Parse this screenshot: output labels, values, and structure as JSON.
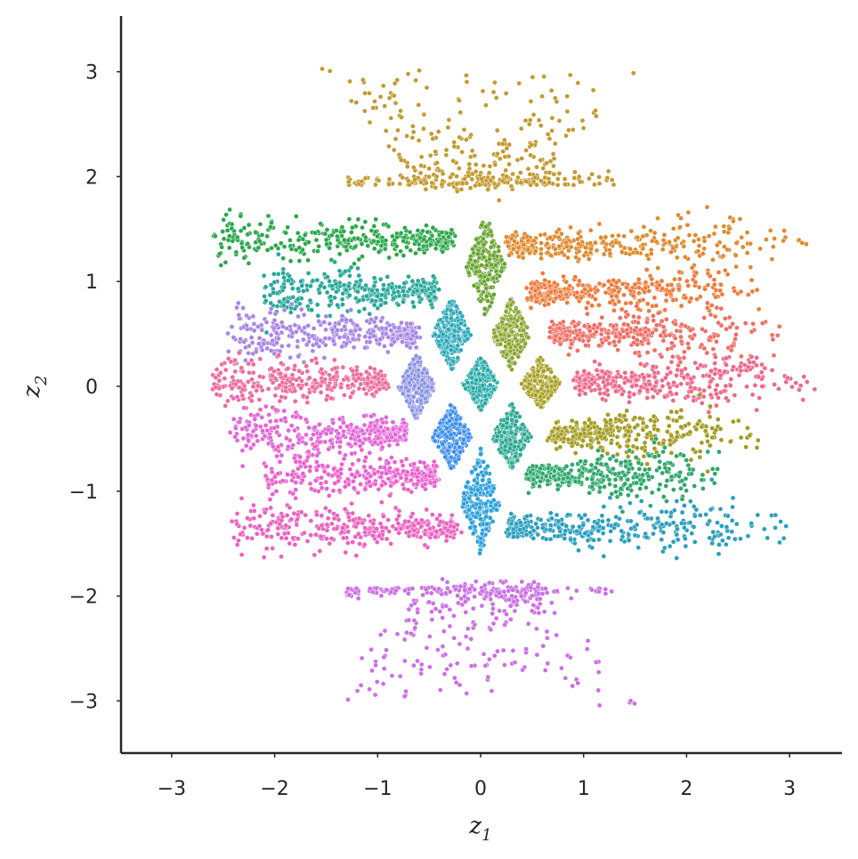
{
  "chart_data": {
    "type": "scatter",
    "title": "",
    "xlabel": "z",
    "xlabel_sub": "1",
    "ylabel": "z",
    "ylabel_sub": "2",
    "xlim": [
      -3.5,
      3.5
    ],
    "ylim": [
      -3.5,
      3.5
    ],
    "xticks": [
      -3,
      -2,
      -1,
      0,
      1,
      2,
      3
    ],
    "yticks": [
      -3,
      -2,
      -1,
      0,
      1,
      2,
      3
    ],
    "xtick_labels": [
      "−3",
      "−2",
      "−1",
      "0",
      "1",
      "2",
      "3"
    ],
    "ytick_labels": [
      "−3",
      "−2",
      "−1",
      "0",
      "1",
      "2",
      "3"
    ],
    "grid": false,
    "legend": "none",
    "points_per_cluster_shown_approx": "dense clusters of small dots",
    "series": [
      {
        "color": "#c49a2e",
        "center": [
          0.0,
          2.2
        ],
        "shape": "fan",
        "dir": 1
      },
      {
        "color": "#cc6fe5",
        "center": [
          0.0,
          -2.2
        ],
        "shape": "fan",
        "dir": -1
      },
      {
        "color": "#2aa84a",
        "center": [
          -1.4,
          1.4
        ],
        "shape": "band",
        "xrange": [
          -2.6,
          -0.3
        ]
      },
      {
        "color": "#df8a2c",
        "center": [
          1.4,
          1.35
        ],
        "shape": "band",
        "xrange": [
          0.3,
          2.6
        ]
      },
      {
        "color": "#26a89a",
        "center": [
          -1.3,
          0.9
        ],
        "shape": "band",
        "xrange": [
          -2.1,
          -0.45
        ]
      },
      {
        "color": "#f07a3a",
        "center": [
          1.3,
          0.9
        ],
        "shape": "band",
        "xrange": [
          0.5,
          2.3
        ]
      },
      {
        "color": "#a786e8",
        "center": [
          -1.4,
          0.5
        ],
        "shape": "band",
        "xrange": [
          -2.4,
          -0.65
        ]
      },
      {
        "color": "#f26d63",
        "center": [
          1.4,
          0.5
        ],
        "shape": "band",
        "xrange": [
          0.7,
          2.5
        ]
      },
      {
        "color": "#f06a9a",
        "center": [
          -1.5,
          0.05
        ],
        "shape": "band",
        "xrange": [
          -2.6,
          -0.95
        ]
      },
      {
        "color": "#f0678a",
        "center": [
          1.6,
          0.05
        ],
        "shape": "band",
        "xrange": [
          0.95,
          2.8
        ]
      },
      {
        "color": "#e464d8",
        "center": [
          -1.4,
          -0.45
        ],
        "shape": "band",
        "xrange": [
          -2.4,
          -0.75
        ]
      },
      {
        "color": "#a39c20",
        "center": [
          1.4,
          -0.45
        ],
        "shape": "band",
        "xrange": [
          0.7,
          2.3
        ]
      },
      {
        "color": "#ec5fcf",
        "center": [
          -1.3,
          -0.85
        ],
        "shape": "band",
        "xrange": [
          -2.1,
          -0.45
        ]
      },
      {
        "color": "#2ea86b",
        "center": [
          1.3,
          -0.85
        ],
        "shape": "band",
        "xrange": [
          0.5,
          2.0
        ]
      },
      {
        "color": "#ee5fbf",
        "center": [
          -1.4,
          -1.35
        ],
        "shape": "band",
        "xrange": [
          -2.4,
          -0.25
        ]
      },
      {
        "color": "#2a9fbf",
        "center": [
          1.4,
          -1.35
        ],
        "shape": "band",
        "xrange": [
          0.3,
          2.5
        ]
      },
      {
        "color": "#6aa532",
        "center": [
          0.05,
          1.15
        ],
        "shape": "blob",
        "rx": 0.15,
        "ry": 0.38
      },
      {
        "color": "#2aa8b8",
        "center": [
          -0.28,
          0.5
        ],
        "shape": "blob",
        "rx": 0.15,
        "ry": 0.27
      },
      {
        "color": "#8aa630",
        "center": [
          0.3,
          0.5
        ],
        "shape": "blob",
        "rx": 0.15,
        "ry": 0.27
      },
      {
        "color": "#8a92e8",
        "center": [
          -0.62,
          0.0
        ],
        "shape": "blob",
        "rx": 0.14,
        "ry": 0.25
      },
      {
        "color": "#26aaa8",
        "center": [
          0.0,
          0.03
        ],
        "shape": "blob",
        "rx": 0.14,
        "ry": 0.2
      },
      {
        "color": "#a8a024",
        "center": [
          0.58,
          0.03
        ],
        "shape": "blob",
        "rx": 0.15,
        "ry": 0.2
      },
      {
        "color": "#3a8ef0",
        "center": [
          -0.28,
          -0.48
        ],
        "shape": "blob",
        "rx": 0.15,
        "ry": 0.25
      },
      {
        "color": "#2aa893",
        "center": [
          0.3,
          -0.48
        ],
        "shape": "blob",
        "rx": 0.15,
        "ry": 0.25
      },
      {
        "color": "#2aa0dc",
        "center": [
          0.0,
          -1.1
        ],
        "shape": "blob",
        "rx": 0.15,
        "ry": 0.4
      }
    ]
  }
}
